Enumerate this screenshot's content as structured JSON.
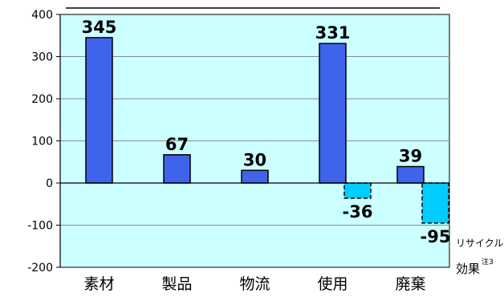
{
  "chart_data": {
    "type": "bar",
    "categories": [
      "素材",
      "製品",
      "物流",
      "使用",
      "廃棄"
    ],
    "series": [
      {
        "values": [
          345,
          67,
          30,
          331,
          39
        ],
        "labels": [
          "345",
          "67",
          "30",
          "331",
          "39"
        ],
        "color": "#3e64ec"
      },
      {
        "values": [
          null,
          null,
          null,
          -36,
          -95
        ],
        "labels": [
          "",
          "",
          "",
          "-36",
          "-95"
        ],
        "color": "#00ccff"
      }
    ],
    "ylim": [
      -200,
      400
    ],
    "yticks": [
      "400",
      "300",
      "200",
      "100",
      "0",
      "-100",
      "-200"
    ],
    "grid": true,
    "plot_background": "#ccffff",
    "legend": {
      "line1": "リサイクル",
      "line2": "効果",
      "note": "注3"
    }
  }
}
